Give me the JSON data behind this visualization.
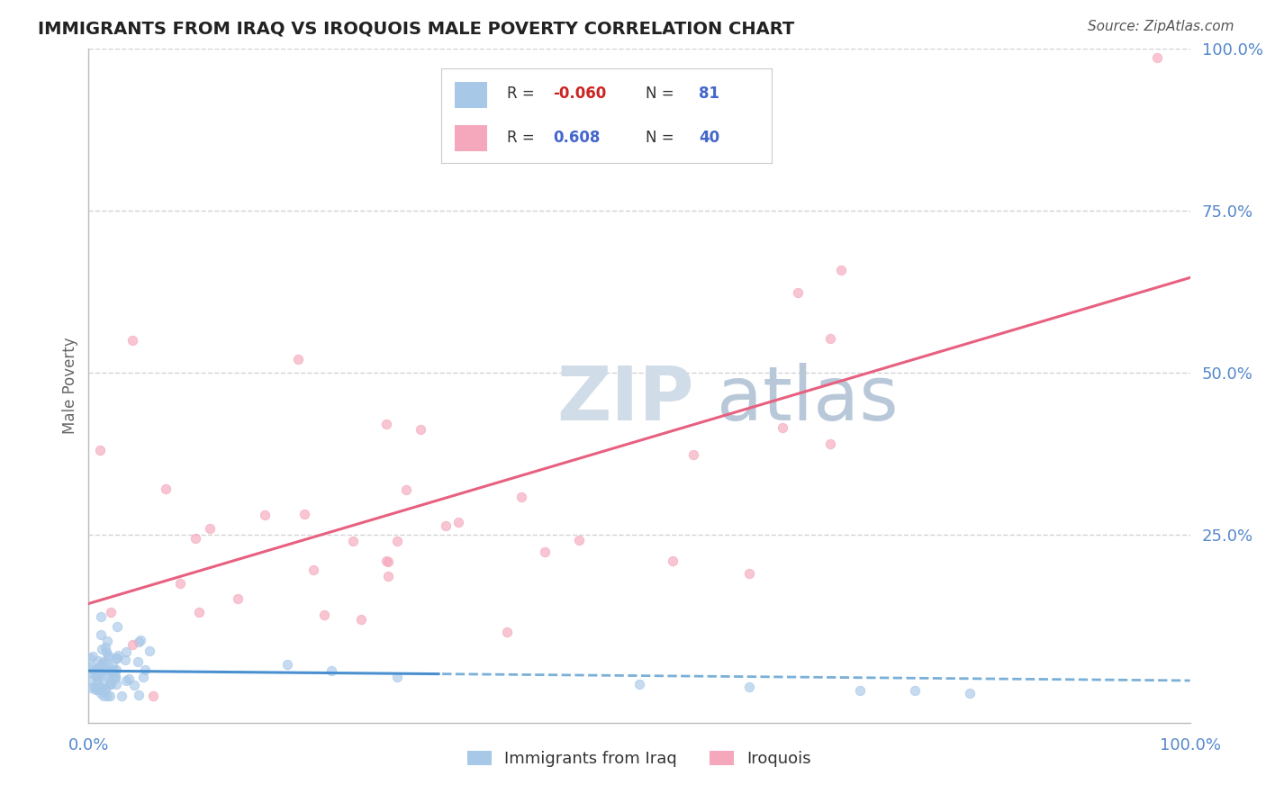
{
  "title": "IMMIGRANTS FROM IRAQ VS IROQUOIS MALE POVERTY CORRELATION CHART",
  "source": "Source: ZipAtlas.com",
  "ylabel": "Male Poverty",
  "xlim": [
    0.0,
    1.0
  ],
  "ylim": [
    -0.04,
    1.0
  ],
  "xtick_positions": [
    0.0,
    1.0
  ],
  "xtick_labels": [
    "0.0%",
    "100.0%"
  ],
  "ytick_positions_right": [
    1.0,
    0.75,
    0.5,
    0.25
  ],
  "ytick_labels_right": [
    "100.0%",
    "75.0%",
    "50.0%",
    "25.0%"
  ],
  "color_iraq": "#a8c8e8",
  "color_iroquois": "#f5a8bc",
  "trendline_iraq_solid_color": "#4a90d0",
  "trendline_iraq_dash_color": "#7ab0d8",
  "trendline_iroquois_color": "#e86080",
  "watermark_color": "#d0dce8",
  "background_color": "#ffffff",
  "grid_color": "#c8c8cc",
  "title_color": "#222222",
  "axis_label_color": "#5588cc",
  "tick_label_color": "#5588cc",
  "ylabel_color": "#666666",
  "scatter_alpha": 0.65,
  "scatter_size": 55,
  "legend_r1_val": "-0.060",
  "legend_n1_val": "81",
  "legend_r2_val": "0.608",
  "legend_n2_val": "40",
  "neg_r_color": "#cc2222",
  "pos_r_color": "#4466cc",
  "n_color": "#4466cc"
}
